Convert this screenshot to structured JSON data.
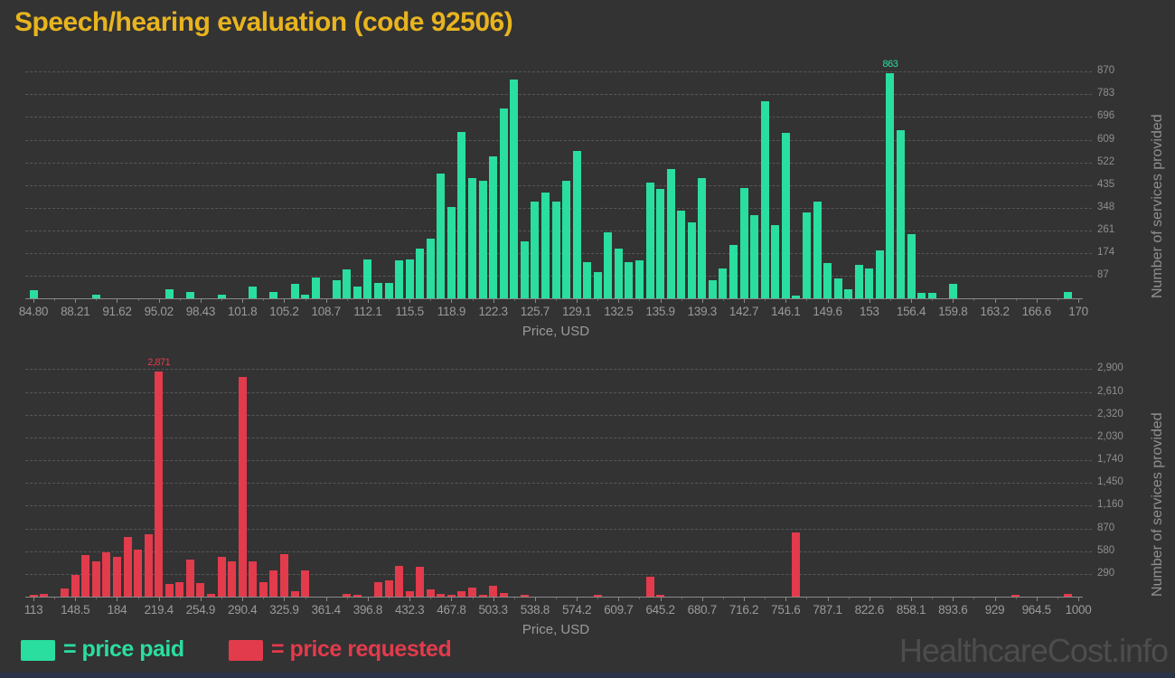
{
  "title": "Speech/hearing evaluation (code 92506)",
  "watermark": "HealthcareCost.info",
  "legend": {
    "paid_label": "= price paid",
    "requested_label": "= price requested"
  },
  "colors": {
    "background": "#333333",
    "paid": "#2ade9f",
    "requested": "#e23b4c",
    "title": "#e8b41f",
    "axis_text": "#9a9a9a",
    "grid": "#606060",
    "watermark": "#4d4d4d",
    "footer_bar": "#2b3447"
  },
  "chart_data": [
    {
      "name": "price-paid-histogram",
      "type": "bar",
      "series_name": "price paid",
      "bar_color": "#2ade9f",
      "xlabel": "Price, USD",
      "ylabel": "Number of services provided",
      "bin_start": 84.8,
      "bin_width": 0.852,
      "n_bins": 100,
      "x_tick_labels": [
        "84.80",
        "88.21",
        "91.62",
        "95.02",
        "98.43",
        "101.8",
        "105.2",
        "108.7",
        "112.1",
        "115.5",
        "118.9",
        "122.3",
        "125.7",
        "129.1",
        "132.5",
        "135.9",
        "139.3",
        "142.7",
        "146.1",
        "149.6",
        "153",
        "156.4",
        "159.8",
        "163.2",
        "166.6",
        "170"
      ],
      "y_tick_values": [
        87,
        174,
        261,
        348,
        435,
        522,
        609,
        696,
        783,
        870
      ],
      "y_tick_labels": [
        "87",
        "174",
        "261",
        "348",
        "435",
        "522",
        "609",
        "696",
        "783",
        "870"
      ],
      "ylim": [
        0,
        930
      ],
      "grid": true,
      "peak_label": {
        "text": "863",
        "bin_index": 82
      },
      "values": [
        30,
        0,
        0,
        0,
        0,
        0,
        15,
        0,
        0,
        0,
        0,
        0,
        0,
        35,
        0,
        25,
        0,
        0,
        15,
        0,
        0,
        45,
        0,
        25,
        0,
        55,
        15,
        80,
        0,
        70,
        110,
        45,
        150,
        60,
        60,
        145,
        150,
        190,
        230,
        480,
        350,
        640,
        460,
        450,
        545,
        730,
        840,
        220,
        370,
        405,
        370,
        450,
        565,
        140,
        100,
        255,
        190,
        140,
        145,
        445,
        420,
        495,
        335,
        290,
        460,
        70,
        115,
        205,
        425,
        320,
        755,
        280,
        635,
        12,
        330,
        370,
        135,
        75,
        35,
        130,
        115,
        185,
        863,
        645,
        245,
        20,
        20,
        0,
        55,
        0,
        0,
        0,
        0,
        0,
        0,
        0,
        0,
        0,
        0,
        25
      ]
    },
    {
      "name": "price-requested-histogram",
      "type": "bar",
      "series_name": "price requested",
      "bar_color": "#e23b4c",
      "xlabel": "Price, USD",
      "ylabel": "Number of services provided",
      "bin_start": 113,
      "bin_width": 8.87,
      "n_bins": 100,
      "x_tick_labels": [
        "113",
        "148.5",
        "184",
        "219.4",
        "254.9",
        "290.4",
        "325.9",
        "361.4",
        "396.8",
        "432.3",
        "467.8",
        "503.3",
        "538.8",
        "574.2",
        "609.7",
        "645.2",
        "680.7",
        "716.2",
        "751.6",
        "787.1",
        "822.6",
        "858.1",
        "893.6",
        "929",
        "964.5",
        "1000"
      ],
      "y_tick_values": [
        290,
        580,
        870,
        1160,
        1450,
        1740,
        2030,
        2320,
        2610,
        2900
      ],
      "y_tick_labels": [
        "290",
        "580",
        "870",
        "1,160",
        "1,450",
        "1,740",
        "2,030",
        "2,320",
        "2,610",
        "2,900"
      ],
      "ylim": [
        0,
        2950
      ],
      "grid": true,
      "peak_label": {
        "text": "2,871",
        "bin_index": 12
      },
      "values": [
        25,
        30,
        0,
        100,
        275,
        525,
        450,
        565,
        505,
        760,
        600,
        790,
        2871,
        160,
        185,
        470,
        170,
        30,
        505,
        455,
        2800,
        450,
        180,
        335,
        545,
        65,
        340,
        0,
        0,
        0,
        30,
        25,
        0,
        180,
        210,
        390,
        70,
        385,
        90,
        35,
        20,
        70,
        120,
        15,
        140,
        45,
        0,
        10,
        0,
        0,
        0,
        0,
        0,
        0,
        15,
        0,
        0,
        0,
        0,
        255,
        15,
        0,
        0,
        0,
        0,
        0,
        0,
        0,
        0,
        0,
        0,
        0,
        0,
        820,
        0,
        0,
        0,
        0,
        0,
        0,
        0,
        0,
        0,
        0,
        0,
        0,
        0,
        0,
        0,
        0,
        0,
        0,
        0,
        0,
        25,
        0,
        0,
        0,
        0,
        30
      ]
    }
  ]
}
